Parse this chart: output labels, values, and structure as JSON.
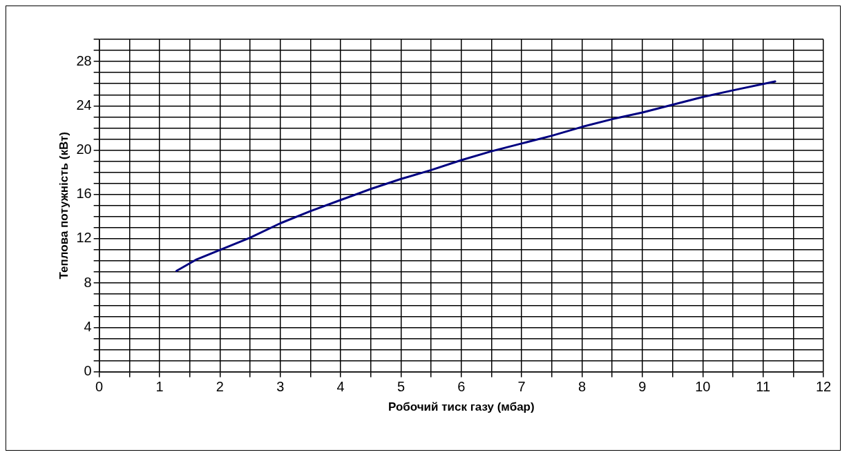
{
  "chart_data": {
    "type": "line",
    "xlabel": "Робочий тиск газу (мбар)",
    "ylabel": "Теплова потужність (кВт)",
    "x": [
      1.28,
      1.6,
      2.0,
      2.5,
      3.0,
      3.5,
      4.0,
      4.5,
      5.0,
      5.5,
      6.0,
      6.5,
      7.0,
      7.5,
      8.0,
      8.5,
      9.0,
      9.5,
      10.0,
      10.5,
      11.2
    ],
    "series": [
      {
        "color": "#000080",
        "values": [
          9.1,
          10.1,
          11.0,
          12.1,
          13.4,
          14.5,
          15.5,
          16.5,
          17.4,
          18.2,
          19.1,
          19.9,
          20.6,
          21.3,
          22.1,
          22.8,
          23.4,
          24.1,
          24.8,
          25.4,
          26.2
        ]
      }
    ],
    "xlim": [
      0,
      12
    ],
    "xticks": [
      0,
      {
        "value": 0.5,
        "label": null
      },
      1,
      {
        "value": 1.5,
        "label": null
      },
      2,
      {
        "value": 2.5,
        "label": null
      },
      3,
      {
        "value": 3.5,
        "label": null
      },
      4,
      {
        "value": 4.5,
        "label": null
      },
      5,
      {
        "value": 5.5,
        "label": null
      },
      6,
      {
        "value": 6.5,
        "label": null
      },
      7,
      {
        "value": 7.5,
        "label": null
      },
      8,
      {
        "value": 8.5,
        "label": null
      },
      9,
      {
        "value": 9.5,
        "label": null
      },
      10,
      {
        "value": 10.5,
        "label": null
      },
      11,
      {
        "value": 11.5,
        "label": null
      },
      12
    ],
    "ylim": [
      0,
      30
    ],
    "yticks": [
      0,
      {
        "value": 1,
        "label": null
      },
      {
        "value": 2,
        "label": null
      },
      {
        "value": 3,
        "label": null
      },
      4,
      {
        "value": 5,
        "label": null
      },
      {
        "value": 6,
        "label": null
      },
      {
        "value": 7,
        "label": null
      },
      8,
      {
        "value": 9,
        "label": null
      },
      {
        "value": 10,
        "label": null
      },
      {
        "value": 11,
        "label": null
      },
      12,
      {
        "value": 13,
        "label": null
      },
      {
        "value": 14,
        "label": null
      },
      {
        "value": 15,
        "label": null
      },
      16,
      {
        "value": 17,
        "label": null
      },
      {
        "value": 18,
        "label": null
      },
      {
        "value": 19,
        "label": null
      },
      20,
      {
        "value": 21,
        "label": null
      },
      {
        "value": 22,
        "label": null
      },
      {
        "value": 23,
        "label": null
      },
      24,
      {
        "value": 25,
        "label": null
      },
      {
        "value": 26,
        "label": null
      },
      {
        "value": 27,
        "label": null
      },
      28,
      {
        "value": 29,
        "label": null
      },
      {
        "value": 30,
        "label": null
      }
    ],
    "grid": true,
    "legend": false,
    "marker": "none",
    "line_style": "solid"
  }
}
